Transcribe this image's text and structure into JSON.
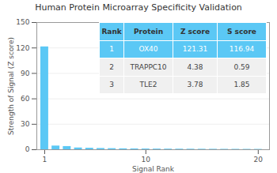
{
  "chart_data": {
    "type": "bar",
    "title": "Human Protein Microarray Specificity Validation",
    "xlabel": "Signal Rank",
    "ylabel": "Strength of Signal (Z score)",
    "x": [
      1,
      2,
      3,
      4,
      5,
      6,
      7,
      8,
      9,
      10,
      11,
      12,
      13,
      14,
      15,
      16,
      17,
      18,
      19,
      20
    ],
    "values": [
      121.31,
      4.38,
      3.78,
      2.1,
      1.8,
      1.5,
      1.3,
      1.1,
      1.0,
      0.9,
      0.8,
      0.75,
      0.7,
      0.65,
      0.6,
      0.55,
      0.5,
      0.48,
      0.45,
      0.42
    ],
    "color": "#5bc8f5",
    "xlim": [
      0.3,
      21
    ],
    "xticks": [
      1,
      10,
      20
    ],
    "ylim": [
      0,
      150
    ],
    "yticks": [
      0,
      30,
      60,
      90,
      120,
      150
    ],
    "grid": true,
    "table": {
      "header": [
        "Rank",
        "Protein",
        "Z score",
        "S score"
      ],
      "rows": [
        [
          "1",
          "OX40",
          "121.31",
          "116.94"
        ],
        [
          "2",
          "TRAPPC10",
          "4.38",
          "0.59"
        ],
        [
          "3",
          "TLE2",
          "3.78",
          "1.85"
        ]
      ]
    }
  }
}
